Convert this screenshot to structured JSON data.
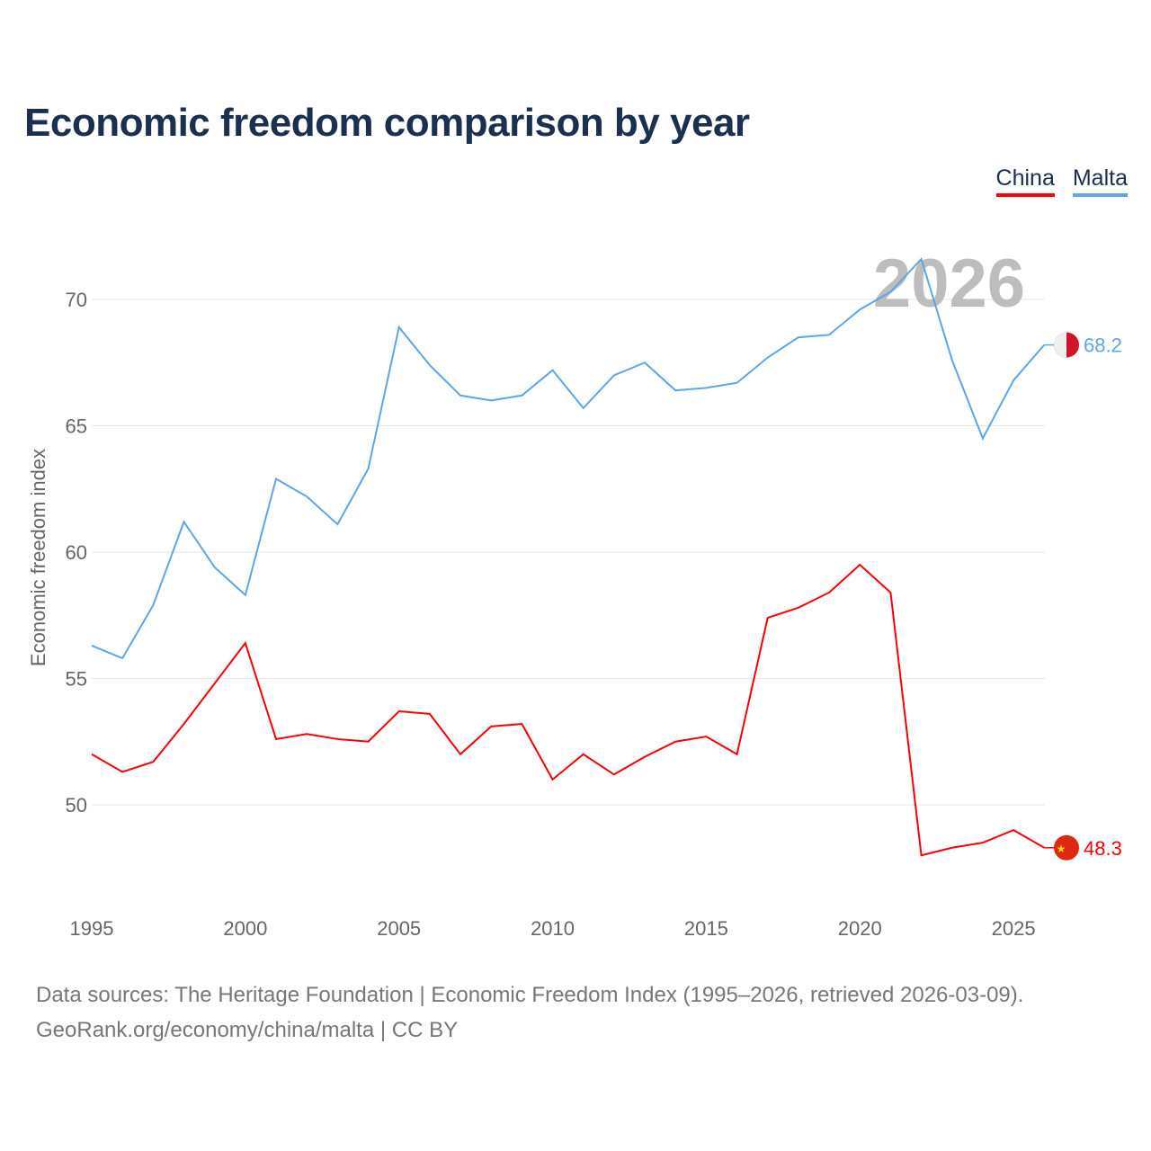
{
  "title": "Economic freedom comparison by year",
  "footer": {
    "line1": "Data sources: The Heritage Foundation | Economic Freedom Index (1995–2026, retrieved 2026-03-09).",
    "line2": "GeoRank.org/economy/china/malta | CC BY"
  },
  "chart_data": {
    "type": "line",
    "title": "Economic freedom comparison by year",
    "ylabel": "Economic freedom index",
    "xlabel": "",
    "year_watermark": "2026",
    "xlim": [
      1995,
      2026
    ],
    "ylim": [
      46.3,
      72.5
    ],
    "xticks": [
      "1995",
      "2000",
      "2005",
      "2010",
      "2015",
      "2020",
      "2025"
    ],
    "yticks": [
      "50",
      "55",
      "60",
      "65",
      "70"
    ],
    "legend": "top-right",
    "grid": true,
    "x": [
      1995,
      1996,
      1997,
      1998,
      1999,
      2000,
      2001,
      2002,
      2003,
      2004,
      2005,
      2006,
      2007,
      2008,
      2009,
      2010,
      2011,
      2012,
      2013,
      2014,
      2015,
      2016,
      2017,
      2018,
      2019,
      2020,
      2021,
      2022,
      2023,
      2024,
      2025,
      2026
    ],
    "series": [
      {
        "name": "China",
        "color": "#ff0000",
        "end_label": "48.3",
        "values": [
          52.0,
          51.3,
          51.7,
          53.2,
          54.8,
          56.4,
          52.6,
          52.8,
          52.6,
          52.5,
          53.7,
          53.6,
          52.0,
          53.1,
          53.2,
          51.0,
          52.0,
          51.2,
          51.9,
          52.5,
          52.7,
          52.0,
          57.4,
          57.8,
          58.4,
          59.5,
          58.4,
          48.0,
          48.3,
          48.5,
          49.0,
          48.3
        ]
      },
      {
        "name": "Malta",
        "color": "#5ea5e8",
        "end_label": "68.2",
        "values": [
          56.3,
          55.8,
          57.9,
          61.2,
          59.4,
          58.3,
          62.9,
          62.2,
          61.1,
          63.3,
          68.9,
          67.4,
          66.2,
          66.0,
          66.2,
          67.2,
          65.7,
          67.0,
          67.5,
          66.4,
          66.5,
          66.7,
          67.7,
          68.5,
          68.6,
          69.6,
          70.3,
          71.6,
          67.6,
          64.5,
          66.8,
          68.2
        ]
      }
    ]
  }
}
